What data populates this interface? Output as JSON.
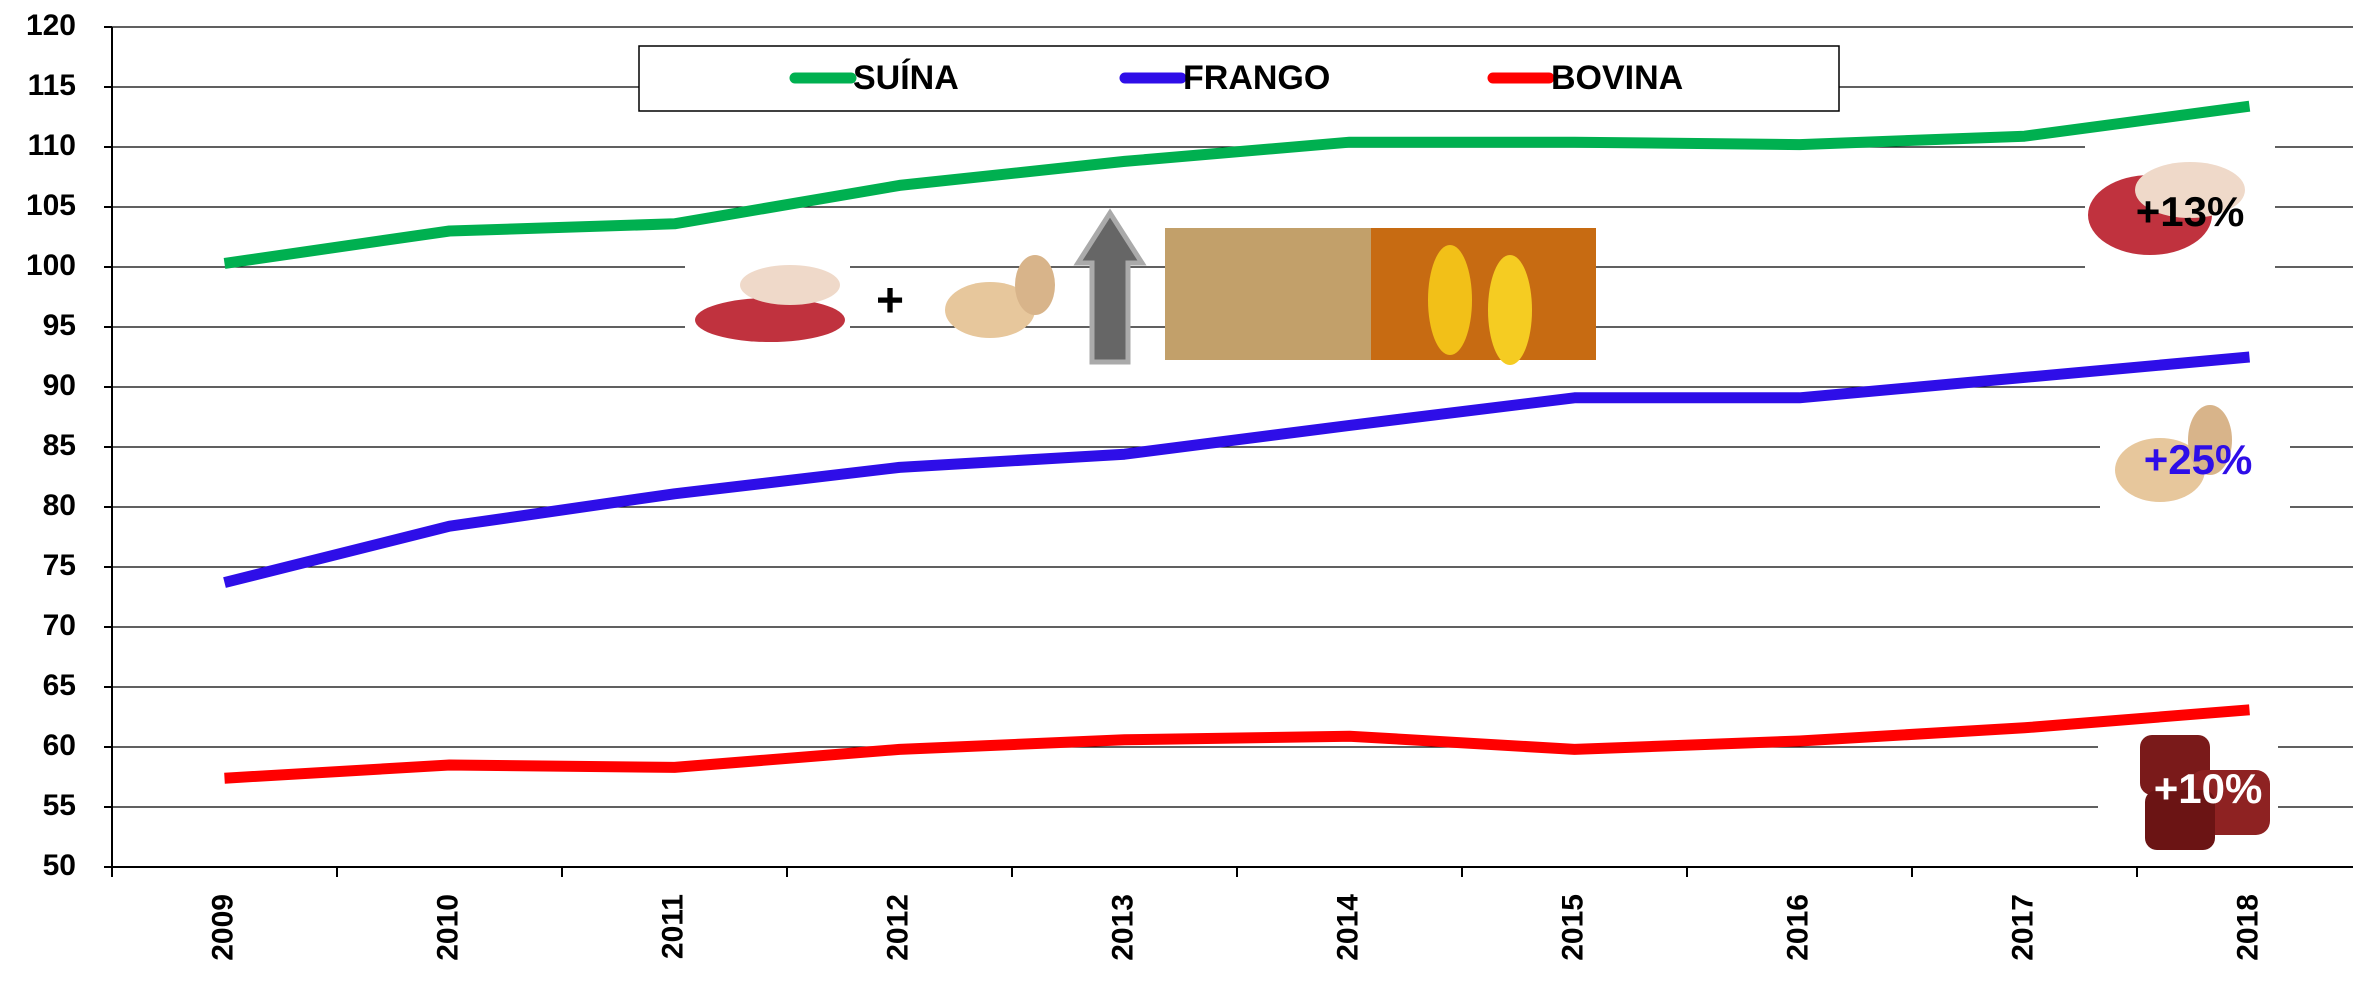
{
  "chart_data": {
    "type": "line",
    "categories": [
      "2009",
      "2010",
      "2011",
      "2012",
      "2013",
      "2014",
      "2015",
      "2016",
      "2017",
      "2018"
    ],
    "series": [
      {
        "name": "SUÍNA",
        "color": "#00b050",
        "values": [
          100.3,
          103,
          103.6,
          106.8,
          108.8,
          110.4,
          110.4,
          110.2,
          110.9,
          113.4
        ]
      },
      {
        "name": "FRANGO",
        "color": "#2e0ee8",
        "values": [
          73.7,
          78.4,
          81.1,
          83.3,
          84.4,
          86.8,
          89.1,
          89.1,
          90.8,
          92.5
        ]
      },
      {
        "name": "BOVINA",
        "color": "#ff0000",
        "values": [
          57.4,
          58.5,
          58.3,
          59.8,
          60.6,
          60.9,
          59.8,
          60.5,
          61.6,
          63.1
        ]
      }
    ],
    "ylim": [
      50,
      120
    ],
    "yticks": [
      50,
      55,
      60,
      65,
      70,
      75,
      80,
      85,
      90,
      95,
      100,
      105,
      110,
      115,
      120
    ],
    "grid": true,
    "annotations": [
      "+13%",
      "+25%",
      "+10%",
      "+"
    ]
  }
}
